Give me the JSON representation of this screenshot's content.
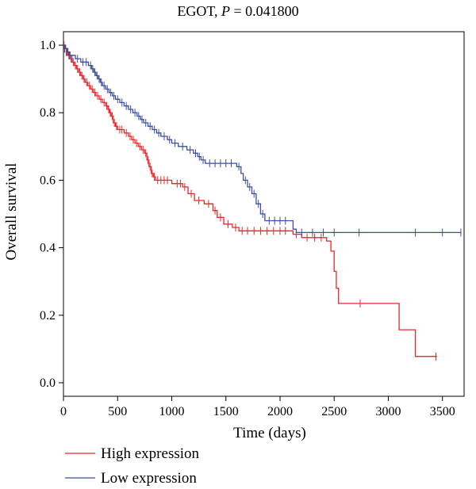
{
  "chart_data": {
    "type": "line",
    "title_prefix": "EGOT, ",
    "title_p_symbol": "P",
    "title_p_value": " = 0.041800",
    "xlabel": "Time (days)",
    "ylabel": "Overall survival",
    "xlim": [
      0,
      3700
    ],
    "ylim": [
      -0.04,
      1.04
    ],
    "xticks": [
      0,
      500,
      1000,
      1500,
      2000,
      2500,
      3000,
      3500
    ],
    "yticks": [
      0.0,
      0.2,
      0.4,
      0.6,
      0.8,
      1.0
    ],
    "ytick_labels": [
      "0.0",
      "0.2",
      "0.4",
      "0.6",
      "0.8",
      "1.0"
    ],
    "grid": false,
    "legend_position": "bottom-left",
    "series": [
      {
        "name": "High expression",
        "color": "#e8262b",
        "steps": [
          [
            0,
            1.0
          ],
          [
            15,
            0.99
          ],
          [
            30,
            0.98
          ],
          [
            45,
            0.97
          ],
          [
            60,
            0.96
          ],
          [
            80,
            0.95
          ],
          [
            100,
            0.94
          ],
          [
            120,
            0.93
          ],
          [
            140,
            0.92
          ],
          [
            160,
            0.91
          ],
          [
            180,
            0.9
          ],
          [
            200,
            0.89
          ],
          [
            225,
            0.88
          ],
          [
            250,
            0.87
          ],
          [
            275,
            0.86
          ],
          [
            300,
            0.85
          ],
          [
            330,
            0.84
          ],
          [
            360,
            0.83
          ],
          [
            390,
            0.82
          ],
          [
            410,
            0.81
          ],
          [
            425,
            0.8
          ],
          [
            440,
            0.79
          ],
          [
            460,
            0.77
          ],
          [
            480,
            0.76
          ],
          [
            500,
            0.75
          ],
          [
            560,
            0.74
          ],
          [
            600,
            0.73
          ],
          [
            630,
            0.72
          ],
          [
            660,
            0.71
          ],
          [
            690,
            0.7
          ],
          [
            720,
            0.69
          ],
          [
            750,
            0.68
          ],
          [
            770,
            0.66
          ],
          [
            790,
            0.64
          ],
          [
            810,
            0.62
          ],
          [
            830,
            0.61
          ],
          [
            850,
            0.6
          ],
          [
            1000,
            0.59
          ],
          [
            1100,
            0.58
          ],
          [
            1150,
            0.56
          ],
          [
            1210,
            0.54
          ],
          [
            1300,
            0.53
          ],
          [
            1380,
            0.51
          ],
          [
            1420,
            0.49
          ],
          [
            1480,
            0.47
          ],
          [
            1560,
            0.46
          ],
          [
            1620,
            0.45
          ],
          [
            2120,
            0.44
          ],
          [
            2200,
            0.43
          ],
          [
            2430,
            0.42
          ],
          [
            2470,
            0.39
          ],
          [
            2500,
            0.33
          ],
          [
            2520,
            0.28
          ],
          [
            2540,
            0.235
          ],
          [
            3100,
            0.157
          ],
          [
            3250,
            0.078
          ],
          [
            3450,
            0.078
          ]
        ],
        "censors": [
          [
            5,
            1.0
          ],
          [
            12,
            0.99
          ],
          [
            25,
            0.98
          ],
          [
            38,
            0.98
          ],
          [
            55,
            0.97
          ],
          [
            70,
            0.96
          ],
          [
            90,
            0.95
          ],
          [
            110,
            0.94
          ],
          [
            130,
            0.93
          ],
          [
            150,
            0.92
          ],
          [
            170,
            0.91
          ],
          [
            190,
            0.9
          ],
          [
            215,
            0.89
          ],
          [
            240,
            0.88
          ],
          [
            265,
            0.87
          ],
          [
            290,
            0.86
          ],
          [
            315,
            0.85
          ],
          [
            345,
            0.84
          ],
          [
            375,
            0.83
          ],
          [
            400,
            0.82
          ],
          [
            418,
            0.81
          ],
          [
            432,
            0.8
          ],
          [
            450,
            0.79
          ],
          [
            470,
            0.77
          ],
          [
            490,
            0.76
          ],
          [
            520,
            0.75
          ],
          [
            540,
            0.75
          ],
          [
            580,
            0.74
          ],
          [
            615,
            0.73
          ],
          [
            645,
            0.72
          ],
          [
            675,
            0.71
          ],
          [
            705,
            0.7
          ],
          [
            735,
            0.69
          ],
          [
            760,
            0.68
          ],
          [
            780,
            0.66
          ],
          [
            800,
            0.64
          ],
          [
            820,
            0.62
          ],
          [
            840,
            0.61
          ],
          [
            870,
            0.6
          ],
          [
            900,
            0.6
          ],
          [
            930,
            0.6
          ],
          [
            960,
            0.6
          ],
          [
            1050,
            0.59
          ],
          [
            1080,
            0.59
          ],
          [
            1120,
            0.58
          ],
          [
            1180,
            0.56
          ],
          [
            1250,
            0.54
          ],
          [
            1340,
            0.53
          ],
          [
            1400,
            0.51
          ],
          [
            1450,
            0.49
          ],
          [
            1520,
            0.47
          ],
          [
            1590,
            0.46
          ],
          [
            1650,
            0.45
          ],
          [
            1700,
            0.45
          ],
          [
            1760,
            0.45
          ],
          [
            1820,
            0.45
          ],
          [
            1880,
            0.45
          ],
          [
            1940,
            0.45
          ],
          [
            2000,
            0.45
          ],
          [
            2050,
            0.45
          ],
          [
            2150,
            0.44
          ],
          [
            2250,
            0.43
          ],
          [
            2320,
            0.43
          ],
          [
            2380,
            0.43
          ],
          [
            2740,
            0.235
          ],
          [
            3440,
            0.078
          ]
        ]
      },
      {
        "name": "Low expression",
        "color": "#3b4f9c",
        "steps": [
          [
            0,
            1.0
          ],
          [
            20,
            0.99
          ],
          [
            40,
            0.98
          ],
          [
            60,
            0.97
          ],
          [
            110,
            0.96
          ],
          [
            160,
            0.95
          ],
          [
            230,
            0.94
          ],
          [
            260,
            0.93
          ],
          [
            280,
            0.92
          ],
          [
            300,
            0.91
          ],
          [
            320,
            0.9
          ],
          [
            340,
            0.89
          ],
          [
            360,
            0.88
          ],
          [
            390,
            0.87
          ],
          [
            420,
            0.86
          ],
          [
            450,
            0.85
          ],
          [
            480,
            0.84
          ],
          [
            520,
            0.83
          ],
          [
            560,
            0.82
          ],
          [
            600,
            0.81
          ],
          [
            640,
            0.8
          ],
          [
            680,
            0.79
          ],
          [
            710,
            0.78
          ],
          [
            740,
            0.77
          ],
          [
            780,
            0.76
          ],
          [
            820,
            0.75
          ],
          [
            860,
            0.74
          ],
          [
            900,
            0.73
          ],
          [
            960,
            0.72
          ],
          [
            1000,
            0.71
          ],
          [
            1060,
            0.7
          ],
          [
            1140,
            0.69
          ],
          [
            1200,
            0.68
          ],
          [
            1240,
            0.67
          ],
          [
            1270,
            0.66
          ],
          [
            1310,
            0.65
          ],
          [
            1600,
            0.64
          ],
          [
            1640,
            0.62
          ],
          [
            1660,
            0.6
          ],
          [
            1700,
            0.58
          ],
          [
            1740,
            0.56
          ],
          [
            1780,
            0.53
          ],
          [
            1820,
            0.5
          ],
          [
            1860,
            0.48
          ],
          [
            2120,
            0.455
          ],
          [
            2150,
            0.445
          ],
          [
            3670,
            0.445
          ]
        ],
        "censors": [
          [
            10,
            0.99
          ],
          [
            30,
            0.98
          ],
          [
            50,
            0.97
          ],
          [
            80,
            0.96
          ],
          [
            130,
            0.96
          ],
          [
            180,
            0.95
          ],
          [
            210,
            0.95
          ],
          [
            250,
            0.94
          ],
          [
            270,
            0.93
          ],
          [
            290,
            0.92
          ],
          [
            310,
            0.91
          ],
          [
            330,
            0.9
          ],
          [
            350,
            0.89
          ],
          [
            375,
            0.88
          ],
          [
            405,
            0.87
          ],
          [
            435,
            0.86
          ],
          [
            465,
            0.85
          ],
          [
            500,
            0.84
          ],
          [
            540,
            0.83
          ],
          [
            580,
            0.82
          ],
          [
            620,
            0.81
          ],
          [
            660,
            0.8
          ],
          [
            695,
            0.79
          ],
          [
            725,
            0.78
          ],
          [
            760,
            0.77
          ],
          [
            800,
            0.76
          ],
          [
            840,
            0.75
          ],
          [
            880,
            0.74
          ],
          [
            930,
            0.73
          ],
          [
            980,
            0.72
          ],
          [
            1030,
            0.71
          ],
          [
            1100,
            0.7
          ],
          [
            1170,
            0.69
          ],
          [
            1220,
            0.68
          ],
          [
            1255,
            0.67
          ],
          [
            1290,
            0.66
          ],
          [
            1350,
            0.65
          ],
          [
            1400,
            0.65
          ],
          [
            1450,
            0.65
          ],
          [
            1500,
            0.65
          ],
          [
            1550,
            0.65
          ],
          [
            1620,
            0.64
          ],
          [
            1680,
            0.6
          ],
          [
            1720,
            0.58
          ],
          [
            1760,
            0.56
          ],
          [
            1800,
            0.53
          ],
          [
            1840,
            0.5
          ],
          [
            1900,
            0.48
          ],
          [
            1950,
            0.48
          ],
          [
            2000,
            0.48
          ],
          [
            2050,
            0.48
          ],
          [
            2200,
            0.445
          ],
          [
            2300,
            0.445
          ],
          [
            2400,
            0.445
          ],
          [
            2500,
            0.445
          ],
          [
            2730,
            0.445
          ],
          [
            3250,
            0.445
          ],
          [
            3500,
            0.445
          ],
          [
            3670,
            0.445
          ]
        ]
      }
    ]
  }
}
